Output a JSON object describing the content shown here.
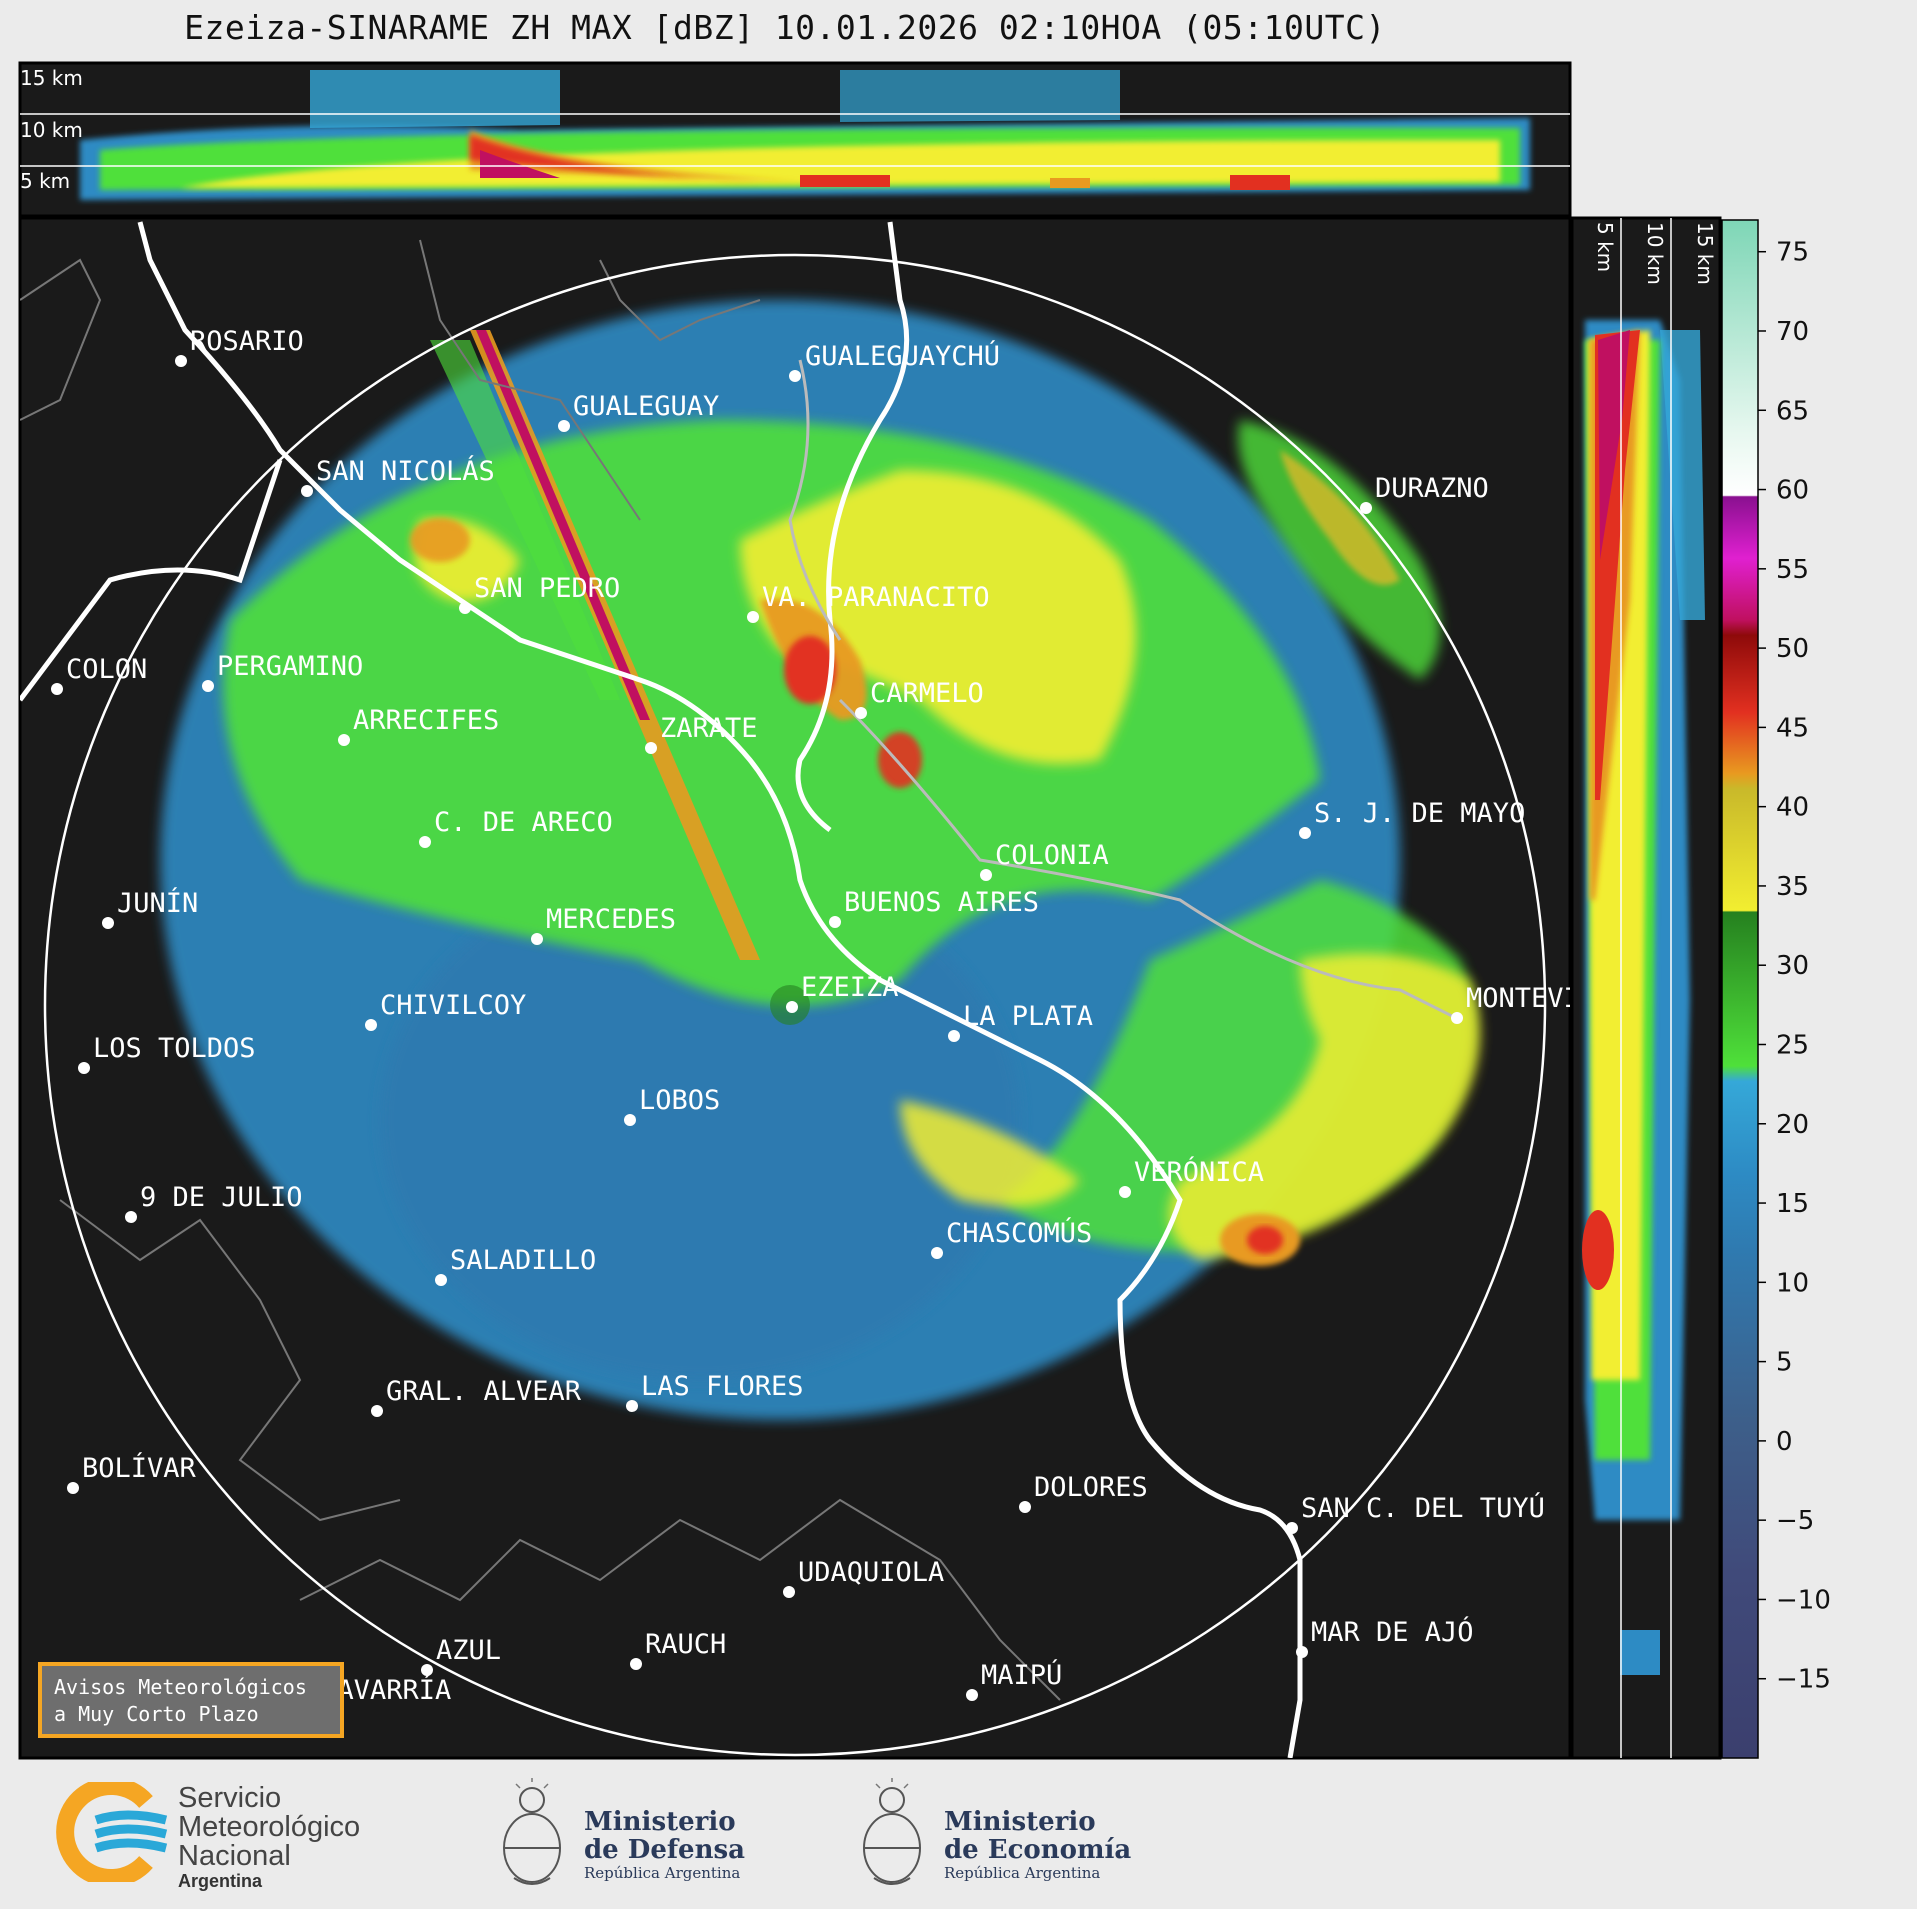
{
  "title": "Ezeiza-SINARAME ZH MAX [dBZ] 10.01.2026 02:10HOA (05:10UTC)",
  "altitude_labels": [
    "15 km",
    "10 km",
    "5 km"
  ],
  "side_altitude_labels": [
    "5 km",
    "10 km",
    "15 km"
  ],
  "colorbar": {
    "ticks": [
      "75",
      "70",
      "65",
      "60",
      "55",
      "50",
      "45",
      "40",
      "35",
      "30",
      "25",
      "20",
      "15",
      "10",
      "5",
      "0",
      "−5",
      "−10",
      "−15"
    ],
    "range_dbz": [
      -20,
      77
    ]
  },
  "cities": [
    {
      "name": "ROSARIO"
    },
    {
      "name": "GUALEGUAYCHÚ"
    },
    {
      "name": "GUALEGUAY"
    },
    {
      "name": "SAN NICOLÁS"
    },
    {
      "name": "DURAZNO"
    },
    {
      "name": "SAN PEDRO"
    },
    {
      "name": "VA. PARANACITO"
    },
    {
      "name": "COLON"
    },
    {
      "name": "PERGAMINO"
    },
    {
      "name": "CARMELO"
    },
    {
      "name": "ARRECIFES"
    },
    {
      "name": "ZARATE"
    },
    {
      "name": "S. J. DE MAYO"
    },
    {
      "name": "C. DE ARECO"
    },
    {
      "name": "COLONIA"
    },
    {
      "name": "JUNÍN"
    },
    {
      "name": "BUENOS AIRES"
    },
    {
      "name": "MERCEDES"
    },
    {
      "name": "EZEIZA"
    },
    {
      "name": "MONTEVIDEO"
    },
    {
      "name": "CHIVILCOY"
    },
    {
      "name": "LA PLATA"
    },
    {
      "name": "LOS TOLDOS"
    },
    {
      "name": "LOBOS"
    },
    {
      "name": "VERÓNICA"
    },
    {
      "name": "9 DE JULIO"
    },
    {
      "name": "CHASCOMÚS"
    },
    {
      "name": "SALADILLO"
    },
    {
      "name": "GRAL. ALVEAR"
    },
    {
      "name": "LAS FLORES"
    },
    {
      "name": "BOLÍVAR"
    },
    {
      "name": "DOLORES"
    },
    {
      "name": "SAN C. DEL TUYÚ"
    },
    {
      "name": "UDAQUIOLA"
    },
    {
      "name": "MAR DE AJÓ"
    },
    {
      "name": "AZUL"
    },
    {
      "name": "RAUCH"
    },
    {
      "name": "MAIPÚ"
    },
    {
      "name": "OLAVARRÍA"
    }
  ],
  "warning_box": {
    "line1": "Avisos Meteorológicos",
    "line2": "a Muy Corto Plazo"
  },
  "footer": {
    "smn": {
      "line1": "Servicio",
      "line2": "Meteorológico",
      "line3": "Nacional",
      "sub": "Argentina"
    },
    "defensa": {
      "line1": "Ministerio",
      "line2": "de Defensa",
      "sub": "República Argentina"
    },
    "economia": {
      "line1": "Ministerio",
      "line2": "de Economía",
      "sub": "República Argentina"
    }
  }
}
